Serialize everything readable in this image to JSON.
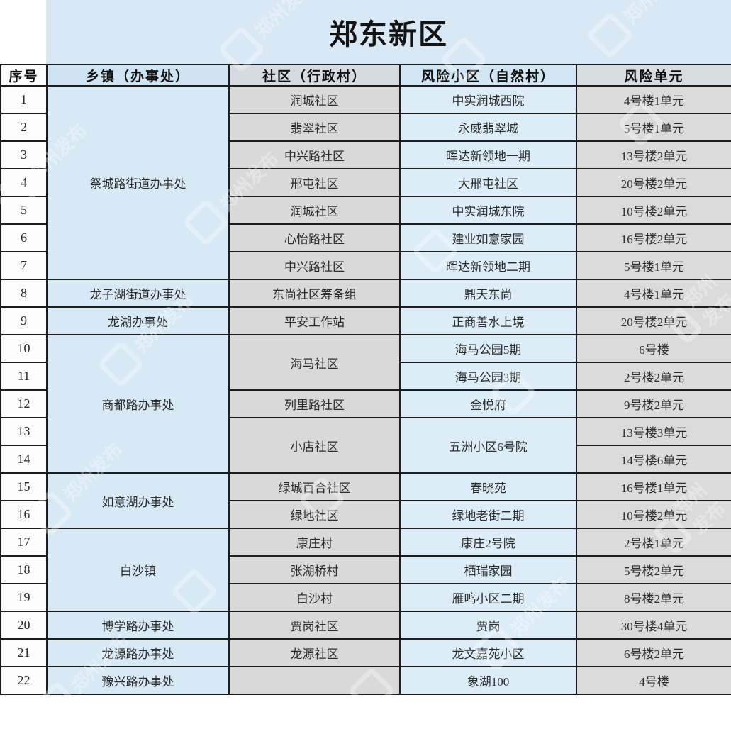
{
  "title": "郑东新区",
  "watermark": {
    "text": "郑州发布"
  },
  "colors": {
    "title_band": "#d9e8f5",
    "cell_blue": "#d8e9f6",
    "cell_blue_light": "#dcedf8",
    "cell_gray": "#d9d9d9",
    "cell_white": "#fdfdfd",
    "border": "#1c1c1c"
  },
  "table": {
    "headers": [
      "序号",
      "乡镇（办事处）",
      "社区（行政村）",
      "风险小区（自然村）",
      "风险单元"
    ],
    "rows": [
      "1",
      "2",
      "3",
      "4",
      "5",
      "6",
      "7",
      "8",
      "9",
      "10",
      "11",
      "12",
      "13",
      "14",
      "15",
      "16",
      "17",
      "18",
      "19",
      "20",
      "21",
      "22"
    ],
    "townships": [
      {
        "label": "祭城路街道办事处",
        "span": 7
      },
      {
        "label": "龙子湖街道办事处",
        "span": 1
      },
      {
        "label": "龙湖办事处",
        "span": 1
      },
      {
        "label": "商都路办事处",
        "span": 5
      },
      {
        "label": "如意湖办事处",
        "span": 2
      },
      {
        "label": "白沙镇",
        "span": 3
      },
      {
        "label": "博学路办事处",
        "span": 1
      },
      {
        "label": "龙源路办事处",
        "span": 1
      },
      {
        "label": "豫兴路办事处",
        "span": 1
      }
    ],
    "communities": [
      {
        "label": "润城社区",
        "span": 1
      },
      {
        "label": "翡翠社区",
        "span": 1
      },
      {
        "label": "中兴路社区",
        "span": 1
      },
      {
        "label": "邢屯社区",
        "span": 1
      },
      {
        "label": "润城社区",
        "span": 1
      },
      {
        "label": "心怡路社区",
        "span": 1
      },
      {
        "label": "中兴路社区",
        "span": 1
      },
      {
        "label": "东尚社区筹备组",
        "span": 1
      },
      {
        "label": "平安工作站",
        "span": 1
      },
      {
        "label": "海马社区",
        "span": 2
      },
      {
        "label": "列里路社区",
        "span": 1
      },
      {
        "label": "小店社区",
        "span": 2
      },
      {
        "label": "绿城百合社区",
        "span": 1
      },
      {
        "label": "绿地社区",
        "span": 1
      },
      {
        "label": "康庄村",
        "span": 1
      },
      {
        "label": "张湖桥村",
        "span": 1
      },
      {
        "label": "白沙村",
        "span": 1
      },
      {
        "label": "贾岗社区",
        "span": 1
      },
      {
        "label": "龙源社区",
        "span": 1
      },
      {
        "label": "",
        "span": 1
      }
    ],
    "compounds": [
      {
        "label": "中实润城西院",
        "span": 1
      },
      {
        "label": "永威翡翠城",
        "span": 1
      },
      {
        "label": "晖达新领地一期",
        "span": 1
      },
      {
        "label": "大邢屯社区",
        "span": 1
      },
      {
        "label": "中实润城东院",
        "span": 1
      },
      {
        "label": "建业如意家园",
        "span": 1
      },
      {
        "label": "晖达新领地二期",
        "span": 1
      },
      {
        "label": "鼎天东尚",
        "span": 1
      },
      {
        "label": "正商善水上境",
        "span": 1
      },
      {
        "label": "海马公园5期",
        "span": 1
      },
      {
        "label": "海马公园3期",
        "span": 1
      },
      {
        "label": "金悦府",
        "span": 1
      },
      {
        "label": "五洲小区6号院",
        "span": 2
      },
      {
        "label": "春晓苑",
        "span": 1
      },
      {
        "label": "绿地老街二期",
        "span": 1
      },
      {
        "label": "康庄2号院",
        "span": 1
      },
      {
        "label": "栖瑞家园",
        "span": 1
      },
      {
        "label": "雁鸣小区二期",
        "span": 1
      },
      {
        "label": "贾岗",
        "span": 1
      },
      {
        "label": "龙文嘉苑小区",
        "span": 1
      },
      {
        "label": "象湖100",
        "span": 1
      }
    ],
    "units": [
      "4号楼1单元",
      "5号楼1单元",
      "13号楼2单元",
      "20号楼2单元",
      "10号楼2单元",
      "16号楼2单元",
      "5号楼1单元",
      "4号楼1单元",
      "20号楼2单元",
      "6号楼",
      "2号楼2单元",
      "9号楼2单元",
      "13号楼3单元",
      "14号楼6单元",
      "16号楼1单元",
      "10号楼2单元",
      "2号楼1单元",
      "5号楼2单元",
      "8号楼2单元",
      "30号楼4单元",
      "6号楼2单元",
      "4号楼"
    ]
  }
}
